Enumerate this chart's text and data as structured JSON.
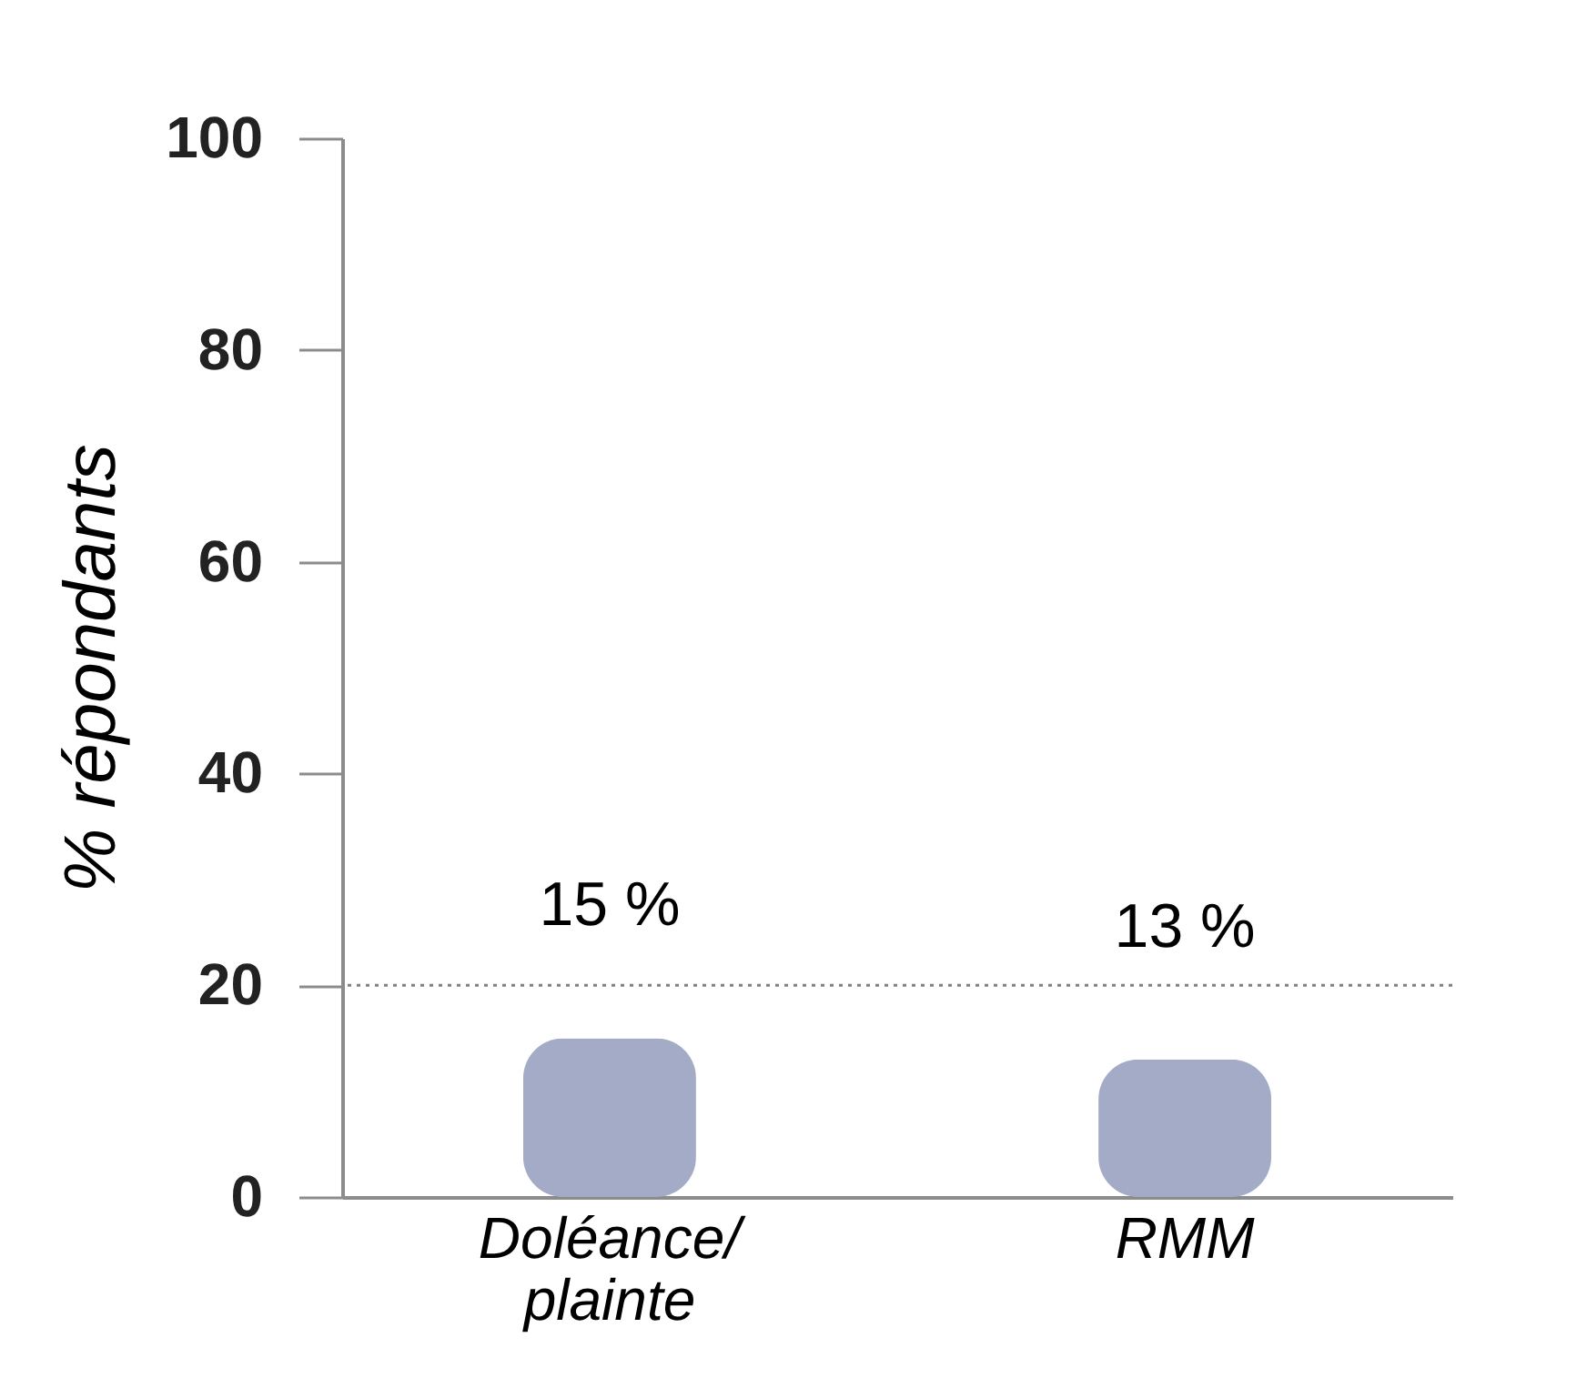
{
  "chart_data": {
    "type": "bar",
    "ylabel": "% répondants",
    "categories": [
      "Doléance/ plainte",
      "RMM"
    ],
    "values": [
      15,
      13
    ],
    "value_labels": [
      "15 %",
      "13 %"
    ],
    "color": "#a3abc6",
    "ylim": [
      0,
      100
    ],
    "yticks": [
      0,
      20,
      40,
      60,
      80,
      100
    ],
    "grid": false,
    "ref_lines": [
      {
        "axis": "y",
        "value": 20,
        "label": null,
        "color": "#808080",
        "line_style": "dotted"
      }
    ]
  }
}
